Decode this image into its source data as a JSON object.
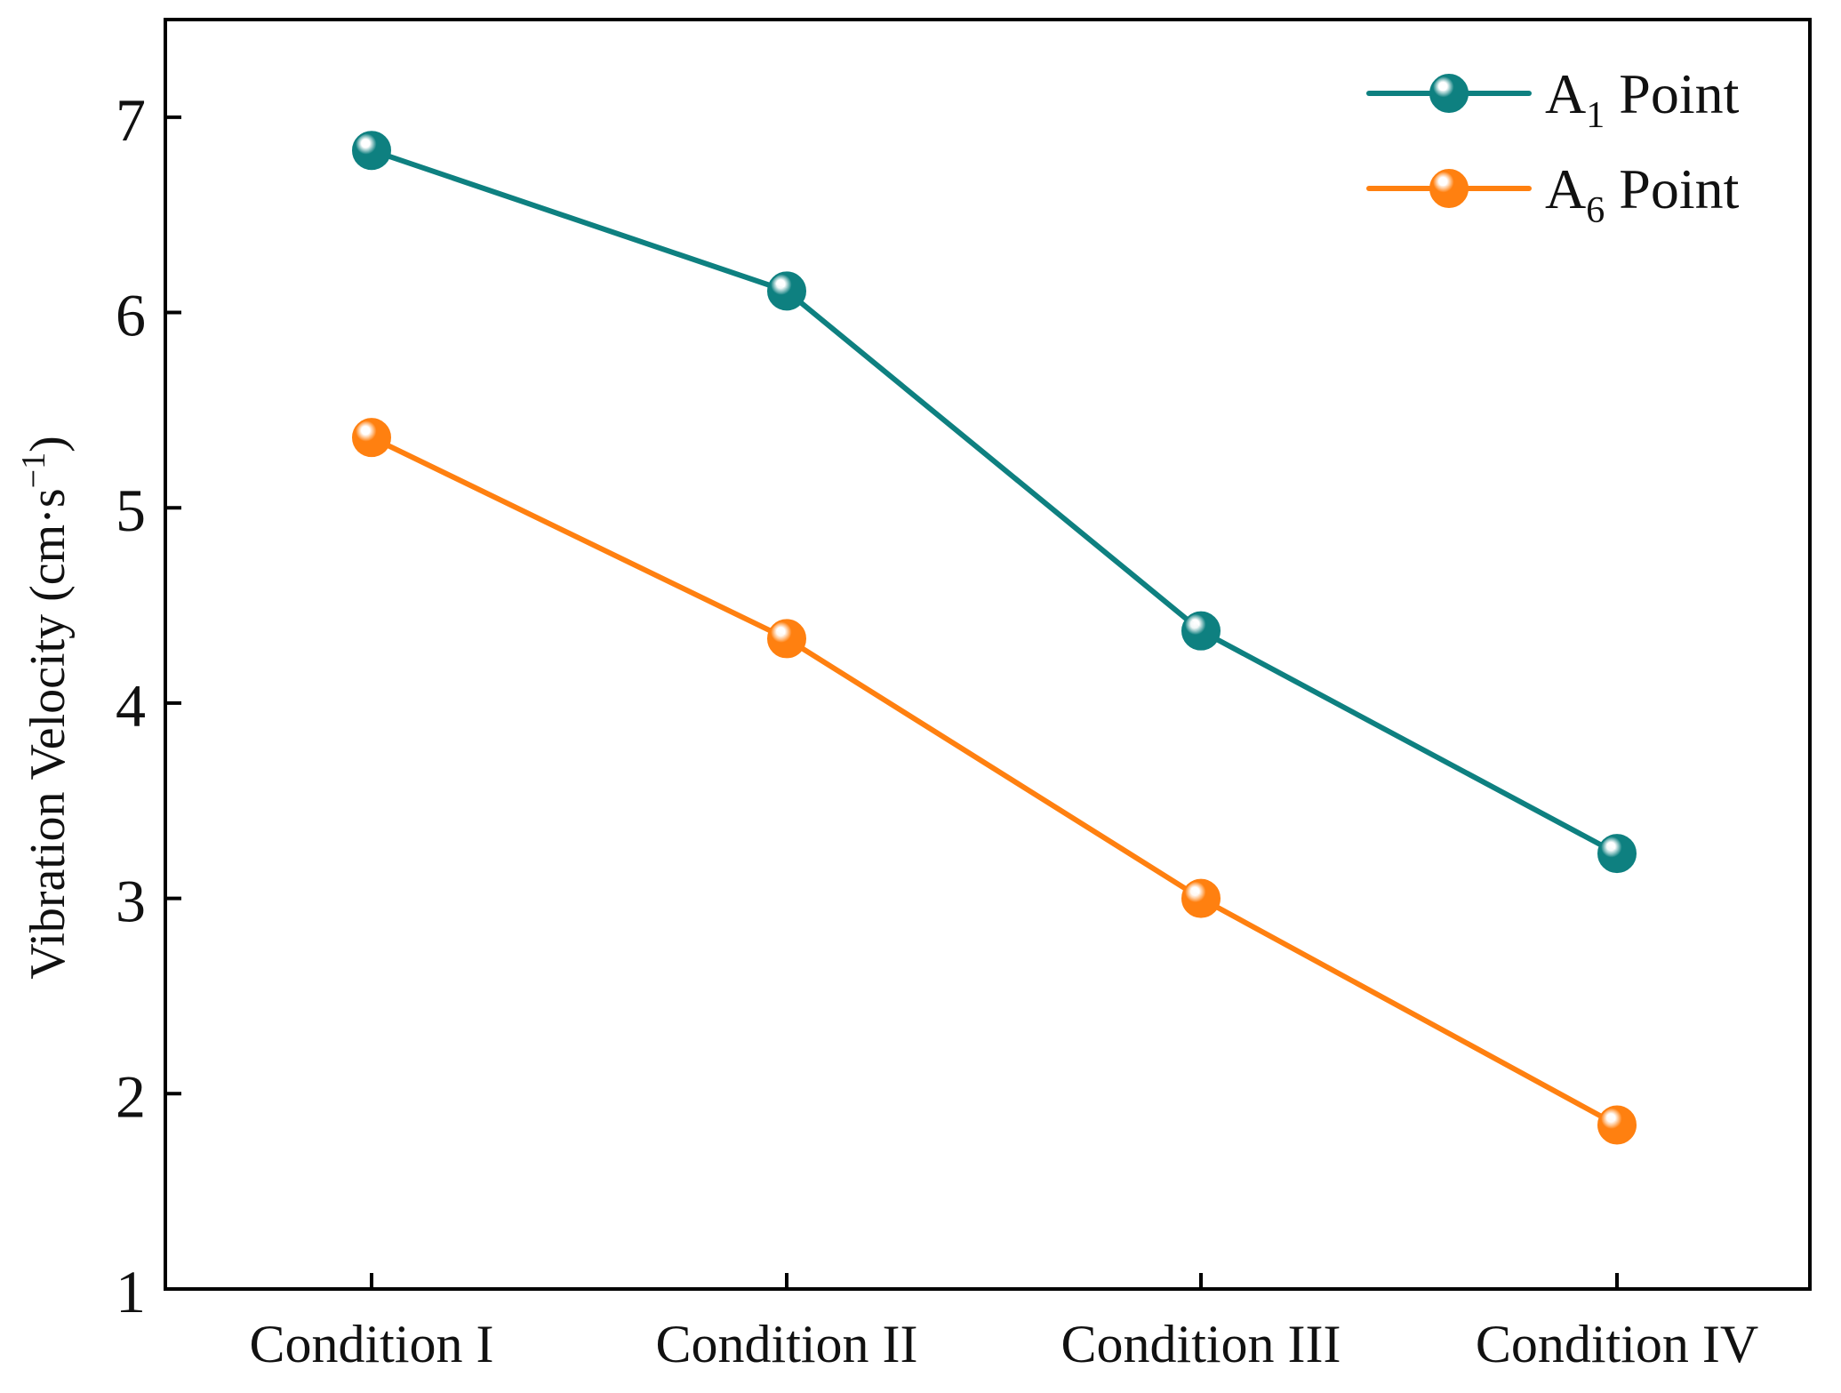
{
  "chart_data": {
    "type": "line",
    "title": "",
    "xlabel": "",
    "ylabel": "Vibration Velocity (cm·s",
    "ylabel_exponent": "−1",
    "ylabel_close": ")",
    "categories": [
      "Condition I",
      "Condition II",
      "Condition III",
      "Condition IV"
    ],
    "ylim": [
      1,
      7.5
    ],
    "yticks": [
      1,
      2,
      3,
      4,
      5,
      6,
      7
    ],
    "grid": false,
    "legend_position": "top-right",
    "series": [
      {
        "name": "A1 Point",
        "label_base": "A",
        "label_sub": "1",
        "label_rest": " Point",
        "color": "#0e8080",
        "values": [
          6.83,
          6.11,
          4.37,
          3.23
        ]
      },
      {
        "name": "A6 Point",
        "label_base": "A",
        "label_sub": "6",
        "label_rest": " Point",
        "color": "#ff8010",
        "values": [
          5.36,
          4.33,
          3.0,
          1.84
        ]
      }
    ]
  }
}
